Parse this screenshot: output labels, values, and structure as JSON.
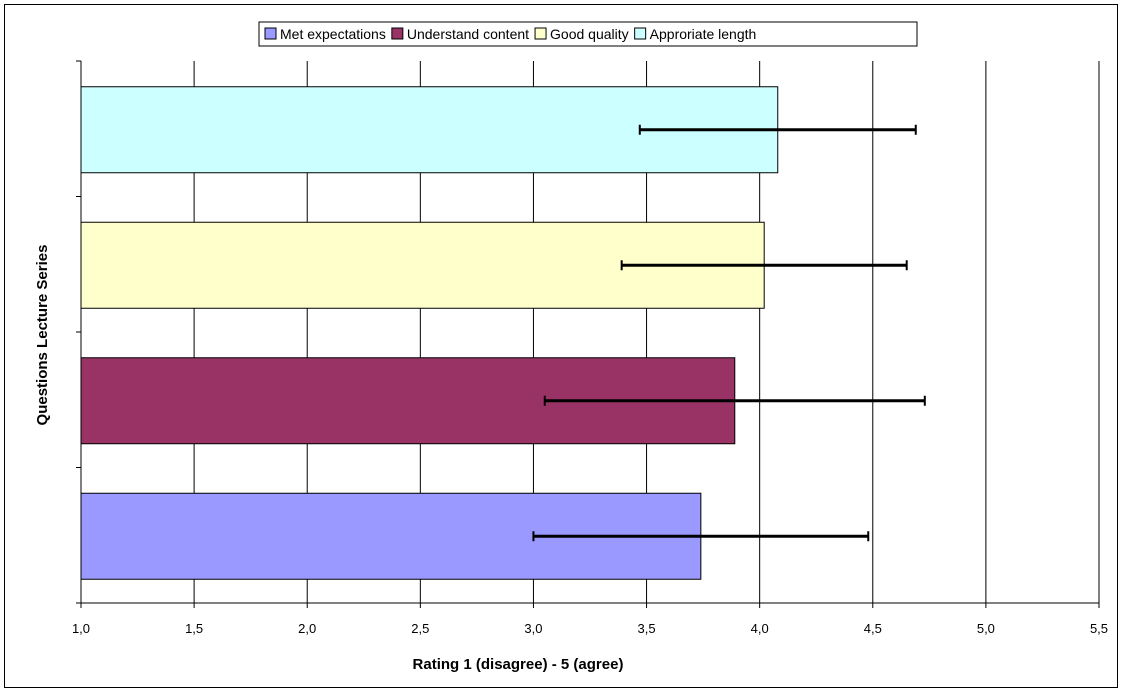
{
  "chart_data": {
    "type": "bar",
    "orientation": "horizontal",
    "title": "",
    "xlabel": "Rating 1 (disagree) - 5 (agree)",
    "ylabel": "Questions Lecture Series",
    "xlim": [
      1.0,
      5.5
    ],
    "xticks": [
      "1,0",
      "1,5",
      "2,0",
      "2,5",
      "3,0",
      "3,5",
      "4,0",
      "4,5",
      "5,0",
      "5,5"
    ],
    "grid": "vertical",
    "legend_position": "top",
    "series": [
      {
        "name": "Met expectations",
        "value": 3.74,
        "error_low": 3.0,
        "error_high": 4.48,
        "color": "#9999ff"
      },
      {
        "name": "Understand content",
        "value": 3.89,
        "error_low": 3.05,
        "error_high": 4.73,
        "color": "#993366"
      },
      {
        "name": "Good quality",
        "value": 4.02,
        "error_low": 3.39,
        "error_high": 4.65,
        "color": "#ffffcc"
      },
      {
        "name": "Approriate length",
        "value": 4.08,
        "error_low": 3.47,
        "error_high": 4.69,
        "color": "#ccffff"
      }
    ]
  }
}
